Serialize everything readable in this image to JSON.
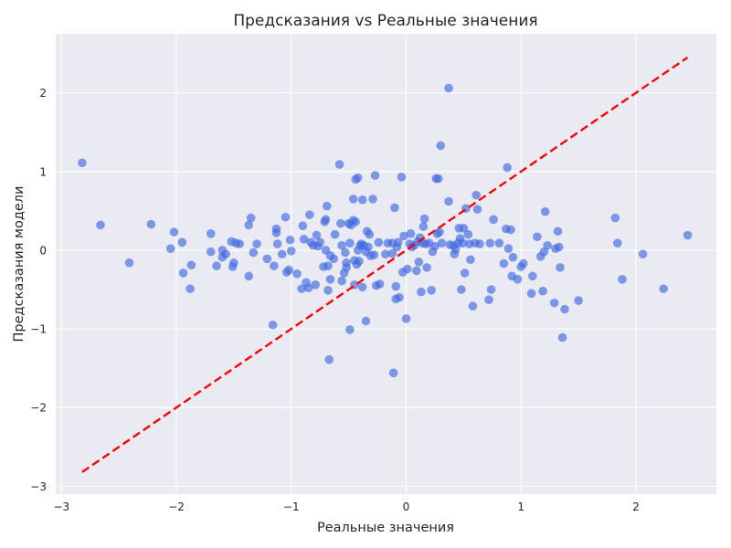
{
  "chart_data": {
    "type": "scatter",
    "title": "Предсказания vs Реальные значения",
    "xlabel": "Реальные значения",
    "ylabel": "Предсказания модели",
    "xlim": [
      -3.05,
      2.7
    ],
    "ylim": [
      -3.1,
      2.75
    ],
    "xticks": [
      -3,
      -2,
      -1,
      0,
      1,
      2
    ],
    "yticks": [
      -3,
      -2,
      -1,
      0,
      1,
      2
    ],
    "grid": true,
    "background": "#EAEAF2",
    "point_color": "#4169E1",
    "line_color": "#FF0000",
    "reference_line": {
      "style": "dashed",
      "x": [
        -2.82,
        2.45
      ],
      "y": [
        -2.82,
        2.45
      ]
    },
    "points": [
      [
        -2.82,
        1.11
      ],
      [
        -2.66,
        0.32
      ],
      [
        -2.41,
        -0.16
      ],
      [
        -2.22,
        0.33
      ],
      [
        -2.05,
        0.02
      ],
      [
        -2.02,
        0.23
      ],
      [
        -1.95,
        0.1
      ],
      [
        -1.94,
        -0.29
      ],
      [
        -1.88,
        -0.49
      ],
      [
        -1.87,
        -0.19
      ],
      [
        -1.7,
        0.21
      ],
      [
        -1.7,
        -0.02
      ],
      [
        -1.65,
        -0.2
      ],
      [
        -1.6,
        0.0
      ],
      [
        -1.6,
        -0.09
      ],
      [
        -1.57,
        -0.05
      ],
      [
        -1.52,
        0.11
      ],
      [
        -1.51,
        -0.21
      ],
      [
        -1.5,
        -0.16
      ],
      [
        -1.48,
        0.09
      ],
      [
        -1.45,
        0.08
      ],
      [
        -1.37,
        0.32
      ],
      [
        -1.37,
        -0.33
      ],
      [
        -1.35,
        0.41
      ],
      [
        -1.33,
        -0.03
      ],
      [
        -1.3,
        0.08
      ],
      [
        -1.21,
        -0.11
      ],
      [
        -1.16,
        -0.95
      ],
      [
        -1.15,
        -0.2
      ],
      [
        -1.13,
        0.27
      ],
      [
        -1.13,
        0.22
      ],
      [
        -1.12,
        0.08
      ],
      [
        -1.08,
        -0.05
      ],
      [
        -1.05,
        0.42
      ],
      [
        -1.04,
        -0.28
      ],
      [
        -1.02,
        -0.25
      ],
      [
        -1.01,
        0.13
      ],
      [
        -1.0,
        -0.01
      ],
      [
        -0.95,
        -0.3
      ],
      [
        -0.91,
        -0.49
      ],
      [
        -0.9,
        0.31
      ],
      [
        -0.89,
        0.14
      ],
      [
        -0.87,
        -0.41
      ],
      [
        -0.85,
        -0.48
      ],
      [
        -0.84,
        0.45
      ],
      [
        -0.83,
        0.1
      ],
      [
        -0.81,
        0.06
      ],
      [
        -0.79,
        -0.44
      ],
      [
        -0.78,
        0.19
      ],
      [
        -0.77,
        0.05
      ],
      [
        -0.75,
        0.1
      ],
      [
        -0.72,
        -0.21
      ],
      [
        -0.71,
        0.36
      ],
      [
        -0.7,
        0.39
      ],
      [
        -0.7,
        0.0
      ],
      [
        -0.69,
        0.56
      ],
      [
        -0.68,
        -0.2
      ],
      [
        -0.68,
        -0.51
      ],
      [
        -0.67,
        -1.39
      ],
      [
        -0.66,
        -0.07
      ],
      [
        -0.66,
        -0.37
      ],
      [
        -0.63,
        -0.11
      ],
      [
        -0.62,
        0.2
      ],
      [
        -0.58,
        1.09
      ],
      [
        -0.57,
        0.34
      ],
      [
        -0.56,
        0.06
      ],
      [
        -0.56,
        -0.39
      ],
      [
        -0.54,
        -0.29
      ],
      [
        -0.53,
        -0.03
      ],
      [
        -0.52,
        -0.16
      ],
      [
        -0.52,
        -0.22
      ],
      [
        -0.5,
        0.34
      ],
      [
        -0.49,
        -1.01
      ],
      [
        -0.49,
        0.09
      ],
      [
        -0.48,
        0.32
      ],
      [
        -0.46,
        0.65
      ],
      [
        -0.46,
        0.38
      ],
      [
        -0.45,
        -0.13
      ],
      [
        -0.45,
        -0.44
      ],
      [
        -0.44,
        0.9
      ],
      [
        -0.44,
        0.36
      ],
      [
        -0.43,
        -0.18
      ],
      [
        -0.42,
        0.92
      ],
      [
        -0.42,
        0.0
      ],
      [
        -0.41,
        -0.14
      ],
      [
        -0.4,
        0.06
      ],
      [
        -0.39,
        0.08
      ],
      [
        -0.38,
        0.64
      ],
      [
        -0.38,
        -0.47
      ],
      [
        -0.37,
        0.06
      ],
      [
        -0.35,
        -0.02
      ],
      [
        -0.35,
        -0.9
      ],
      [
        -0.34,
        0.24
      ],
      [
        -0.33,
        0.04
      ],
      [
        -0.32,
        0.2
      ],
      [
        -0.31,
        -0.07
      ],
      [
        -0.29,
        0.65
      ],
      [
        -0.28,
        -0.06
      ],
      [
        -0.27,
        0.95
      ],
      [
        -0.26,
        -0.45
      ],
      [
        -0.24,
        0.1
      ],
      [
        -0.23,
        -0.43
      ],
      [
        -0.18,
        -0.05
      ],
      [
        -0.16,
        0.09
      ],
      [
        -0.12,
        0.09
      ],
      [
        -0.12,
        -0.04
      ],
      [
        -0.11,
        -1.56
      ],
      [
        -0.1,
        0.54
      ],
      [
        -0.09,
        -0.46
      ],
      [
        -0.09,
        -0.62
      ],
      [
        -0.08,
        0.04
      ],
      [
        -0.07,
        0.1
      ],
      [
        -0.06,
        -0.6
      ],
      [
        -0.04,
        0.93
      ],
      [
        -0.03,
        -0.28
      ],
      [
        -0.02,
        0.18
      ],
      [
        0.0,
        -0.87
      ],
      [
        0.01,
        -0.24
      ],
      [
        0.03,
        0.08
      ],
      [
        0.04,
        0.21
      ],
      [
        0.05,
        0.04
      ],
      [
        0.07,
        0.06
      ],
      [
        0.09,
        -0.26
      ],
      [
        0.1,
        0.11
      ],
      [
        0.11,
        -0.15
      ],
      [
        0.12,
        0.16
      ],
      [
        0.13,
        -0.53
      ],
      [
        0.14,
        0.09
      ],
      [
        0.15,
        0.3
      ],
      [
        0.16,
        0.4
      ],
      [
        0.17,
        0.08
      ],
      [
        0.18,
        -0.22
      ],
      [
        0.2,
        0.09
      ],
      [
        0.22,
        -0.51
      ],
      [
        0.23,
        -0.02
      ],
      [
        0.25,
        0.05
      ],
      [
        0.26,
        0.91
      ],
      [
        0.27,
        0.21
      ],
      [
        0.28,
        0.91
      ],
      [
        0.29,
        0.23
      ],
      [
        0.3,
        1.33
      ],
      [
        0.31,
        0.09
      ],
      [
        0.37,
        2.06
      ],
      [
        0.37,
        0.62
      ],
      [
        0.38,
        0.07
      ],
      [
        0.41,
        0.06
      ],
      [
        0.42,
        -0.05
      ],
      [
        0.43,
        0.01
      ],
      [
        0.45,
        0.09
      ],
      [
        0.46,
        0.28
      ],
      [
        0.47,
        0.15
      ],
      [
        0.48,
        -0.5
      ],
      [
        0.49,
        0.09
      ],
      [
        0.5,
        0.28
      ],
      [
        0.51,
        -0.29
      ],
      [
        0.52,
        0.53
      ],
      [
        0.54,
        0.2
      ],
      [
        0.55,
        0.08
      ],
      [
        0.56,
        -0.12
      ],
      [
        0.58,
        -0.71
      ],
      [
        0.6,
        0.09
      ],
      [
        0.61,
        0.7
      ],
      [
        0.62,
        0.52
      ],
      [
        0.64,
        0.08
      ],
      [
        0.72,
        -0.63
      ],
      [
        0.73,
        0.09
      ],
      [
        0.74,
        -0.5
      ],
      [
        0.76,
        0.39
      ],
      [
        0.81,
        0.09
      ],
      [
        0.85,
        -0.17
      ],
      [
        0.87,
        0.27
      ],
      [
        0.88,
        1.05
      ],
      [
        0.89,
        0.02
      ],
      [
        0.91,
        0.26
      ],
      [
        0.92,
        -0.33
      ],
      [
        0.93,
        -0.09
      ],
      [
        0.97,
        -0.37
      ],
      [
        1.0,
        -0.21
      ],
      [
        1.02,
        -0.17
      ],
      [
        1.09,
        -0.55
      ],
      [
        1.1,
        -0.33
      ],
      [
        1.14,
        0.17
      ],
      [
        1.17,
        -0.08
      ],
      [
        1.19,
        -0.52
      ],
      [
        1.2,
        -0.02
      ],
      [
        1.21,
        0.49
      ],
      [
        1.23,
        0.06
      ],
      [
        1.29,
        -0.67
      ],
      [
        1.3,
        0.02
      ],
      [
        1.32,
        0.24
      ],
      [
        1.33,
        0.04
      ],
      [
        1.34,
        -0.22
      ],
      [
        1.36,
        -1.11
      ],
      [
        1.38,
        -0.75
      ],
      [
        1.5,
        -0.64
      ],
      [
        1.82,
        0.41
      ],
      [
        1.84,
        0.09
      ],
      [
        1.88,
        -0.37
      ],
      [
        2.06,
        -0.05
      ],
      [
        2.24,
        -0.49
      ],
      [
        2.45,
        0.19
      ]
    ]
  }
}
